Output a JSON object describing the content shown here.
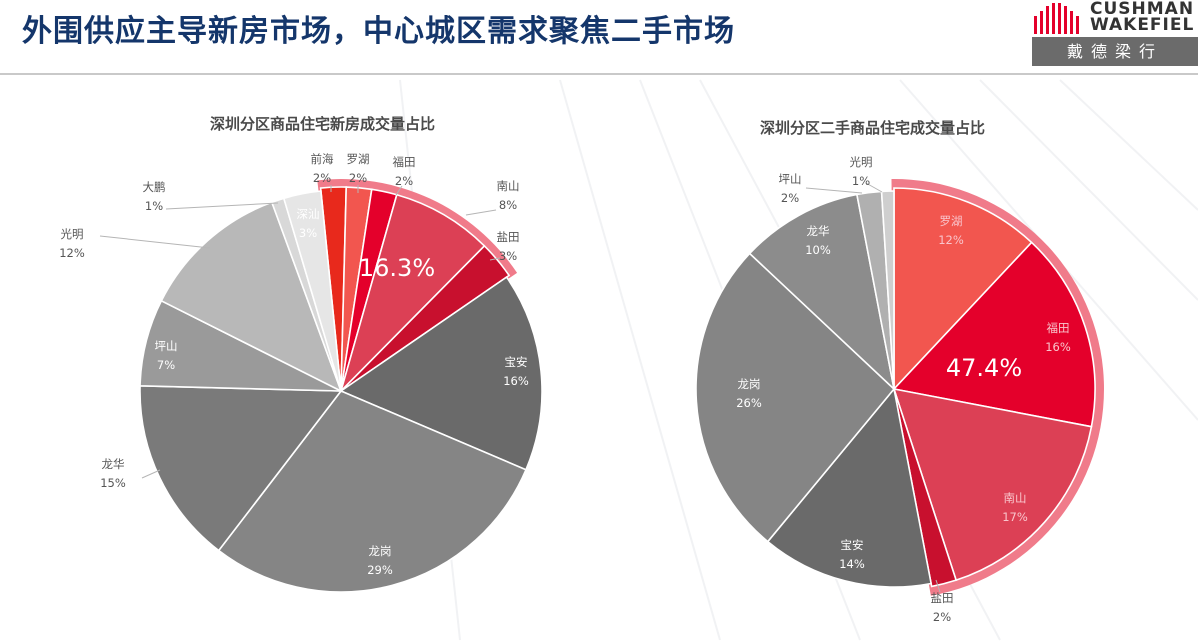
{
  "header": {
    "title": "外围供应主导新房市场，中心城区需求聚焦二手市场",
    "logo_line1": "CUSHMAN",
    "logo_line2": "WAKEFIEL",
    "logo_cn": "戴德梁行"
  },
  "colors": {
    "accent_red": "#e4002b",
    "navy": "#14366b"
  },
  "chart_data": [
    {
      "type": "pie",
      "title": "深圳分区商品住宅新房成交量占比",
      "highlight_label": "16.3%",
      "slices": [
        {
          "name": "前海",
          "label": "2%",
          "value": 2,
          "color": "#e8291c"
        },
        {
          "name": "罗湖",
          "label": "2%",
          "value": 2,
          "color": "#f2564f"
        },
        {
          "name": "福田",
          "label": "2%",
          "value": 2,
          "color": "#e4002b"
        },
        {
          "name": "南山",
          "label": "8%",
          "value": 8,
          "color": "#dc4055"
        },
        {
          "name": "盐田",
          "label": "3%",
          "value": 3,
          "color": "#c8102e"
        },
        {
          "name": "宝安",
          "label": "16%",
          "value": 16,
          "color": "#6a6a6a"
        },
        {
          "name": "龙岗",
          "label": "29%",
          "value": 29,
          "color": "#858585"
        },
        {
          "name": "龙华",
          "label": "15%",
          "value": 15,
          "color": "#7a7a7a"
        },
        {
          "name": "坪山",
          "label": "7%",
          "value": 7,
          "color": "#9a9a9a"
        },
        {
          "name": "光明",
          "label": "12%",
          "value": 12,
          "color": "#b8b8b8"
        },
        {
          "name": "大鹏",
          "label": "1%",
          "value": 1,
          "color": "#d8d8d8"
        },
        {
          "name": "深汕",
          "label": "3%",
          "value": 3,
          "color": "#e6e6e6"
        }
      ]
    },
    {
      "type": "pie",
      "title": "深圳分区二手商品住宅成交量占比",
      "highlight_label": "47.4%",
      "slices": [
        {
          "name": "罗湖",
          "label": "12%",
          "value": 12,
          "color": "#f2564f"
        },
        {
          "name": "福田",
          "label": "16%",
          "value": 16,
          "color": "#e4002b"
        },
        {
          "name": "南山",
          "label": "17%",
          "value": 17,
          "color": "#dc4055"
        },
        {
          "name": "盐田",
          "label": "2%",
          "value": 2,
          "color": "#c8102e"
        },
        {
          "name": "宝安",
          "label": "14%",
          "value": 14,
          "color": "#6a6a6a"
        },
        {
          "name": "龙岗",
          "label": "26%",
          "value": 26,
          "color": "#858585"
        },
        {
          "name": "龙华",
          "label": "10%",
          "value": 10,
          "color": "#8c8c8c"
        },
        {
          "name": "坪山",
          "label": "2%",
          "value": 2,
          "color": "#b0b0b0"
        },
        {
          "name": "光明",
          "label": "1%",
          "value": 1,
          "color": "#cfcfcf"
        }
      ]
    }
  ]
}
